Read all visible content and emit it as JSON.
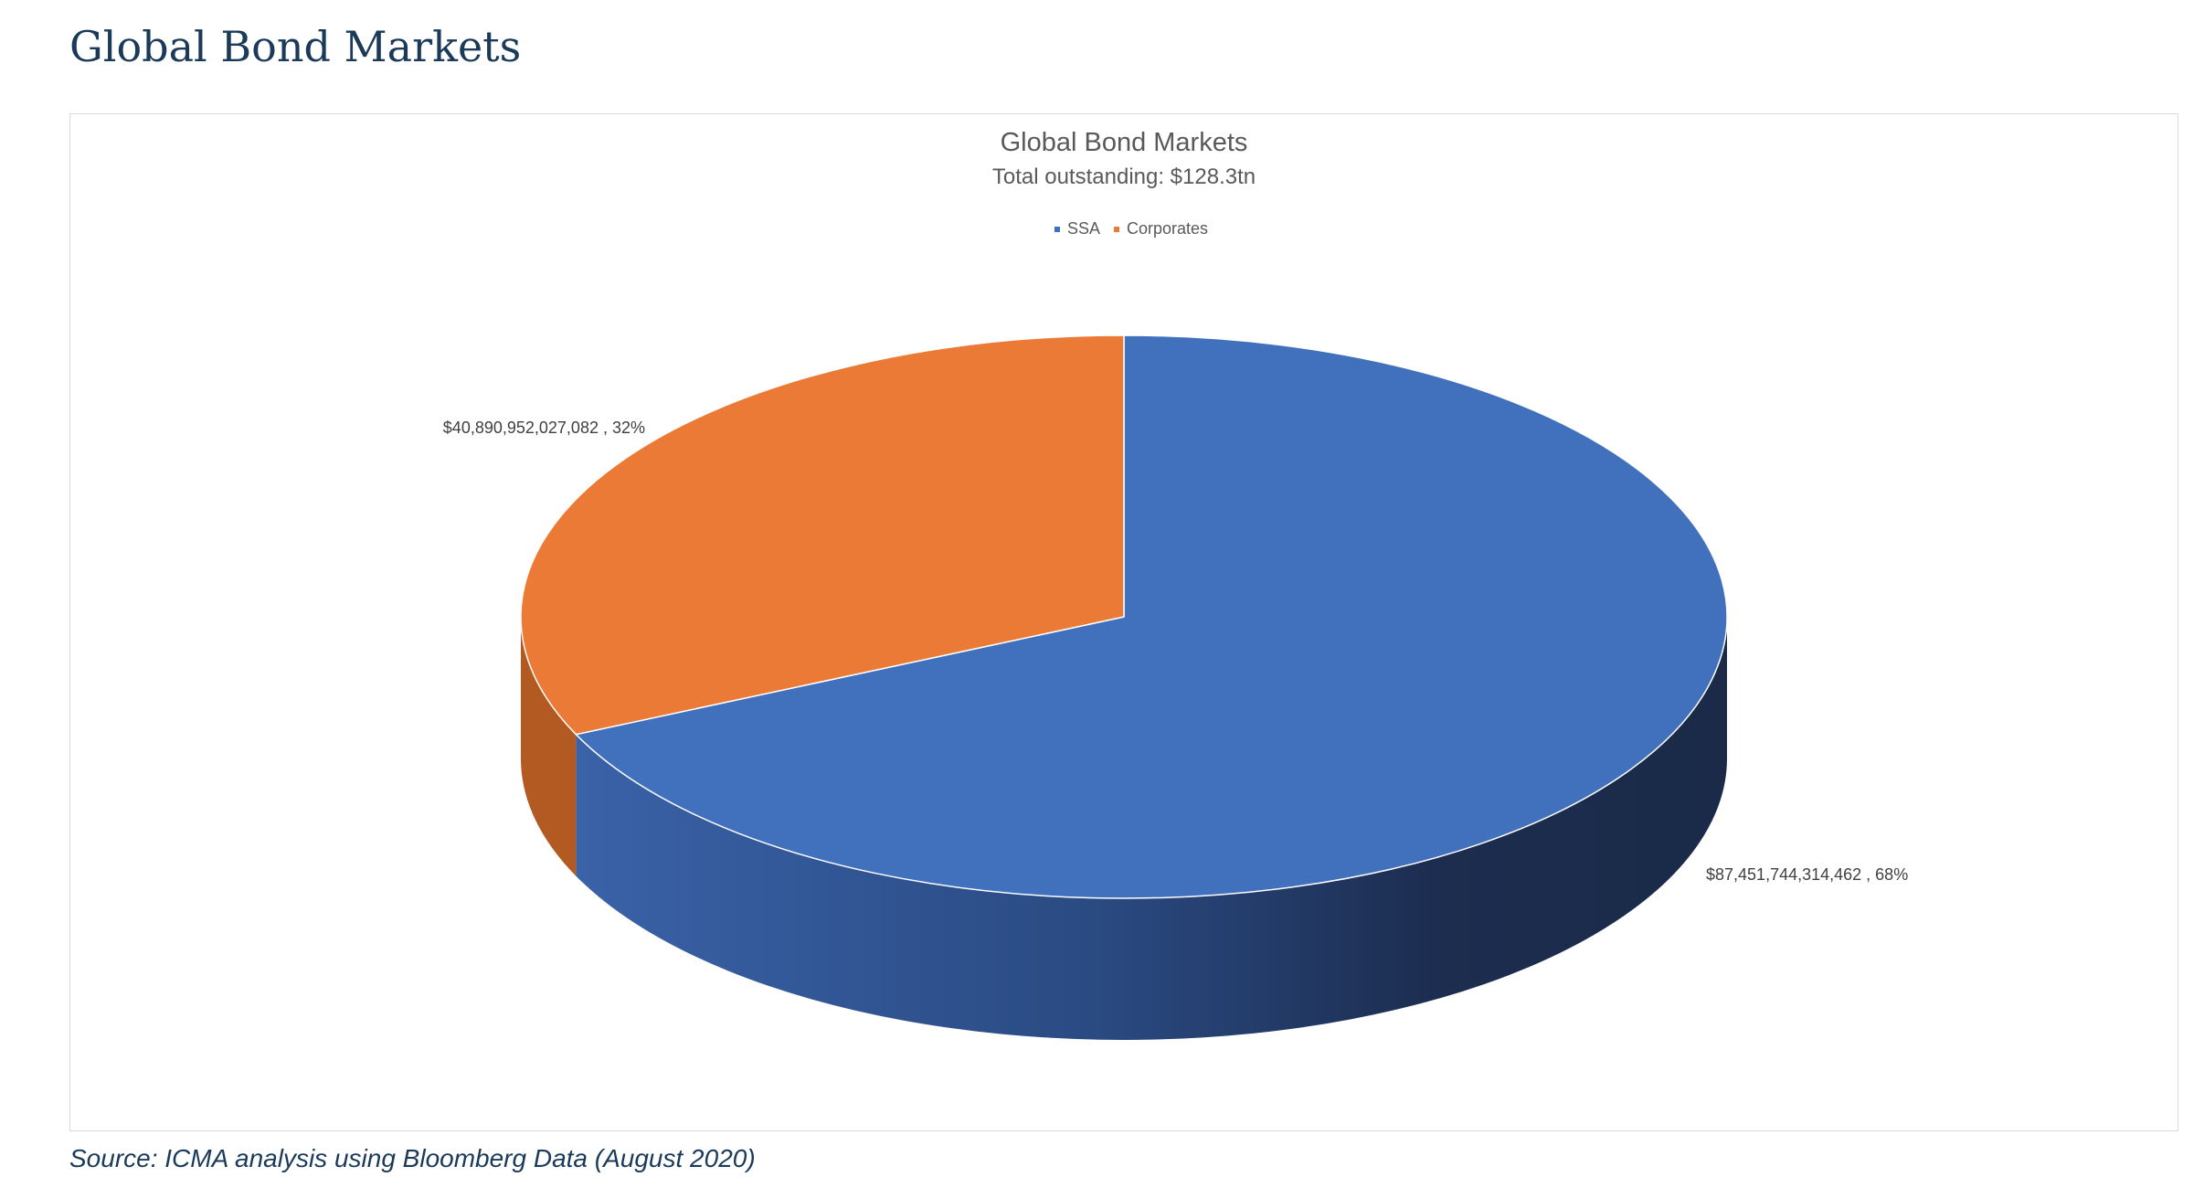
{
  "page": {
    "title": "Global Bond Markets",
    "source": "Source: ICMA analysis using Bloomberg Data (August 2020)"
  },
  "chart_data": {
    "type": "pie",
    "title": "Global Bond Markets",
    "subtitle": "Total outstanding: $128.3tn",
    "legend_position": "top",
    "three_d": true,
    "categories": [
      "SSA",
      "Corporates"
    ],
    "values": [
      87451744314462,
      40890952027082
    ],
    "percents": [
      68,
      32
    ],
    "data_labels": [
      "$87,451,744,314,462 , 68%",
      "$40,890,952,027,082 , 32%"
    ],
    "colors": [
      "#4170bd",
      "#ea7a35"
    ],
    "side_colors": [
      "#2d4f8c",
      "#b35a22"
    ]
  }
}
